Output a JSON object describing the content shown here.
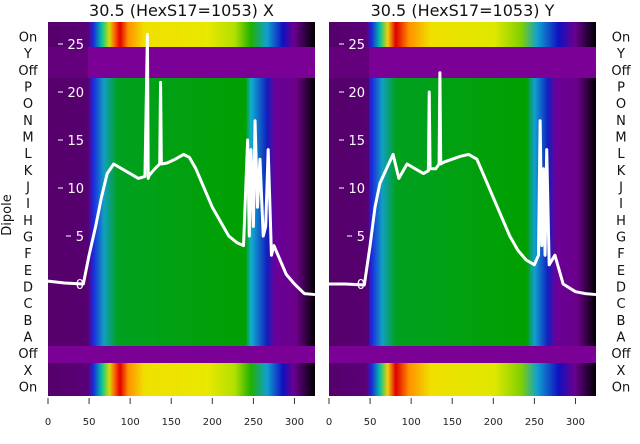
{
  "chart_data": [
    {
      "type": "heatmap",
      "title": "30.5 (HexS17=1053) X",
      "ylabel": "Dipole",
      "xlim": [
        0,
        325
      ],
      "xticks": [
        0,
        50,
        100,
        150,
        200,
        250,
        300
      ],
      "row_labels": [
        "On",
        "Y",
        "Off",
        "P",
        "O",
        "N",
        "M",
        "L",
        "K",
        "J",
        "I",
        "H",
        "G",
        "F",
        "E",
        "D",
        "C",
        "B",
        "A",
        "Off",
        "X",
        "On"
      ],
      "overlay_yticks": [
        0,
        5,
        10,
        15,
        20,
        25
      ],
      "overlay_line": {
        "x": [
          0,
          20,
          43,
          50,
          58,
          65,
          72,
          80,
          90,
          100,
          110,
          118,
          121,
          122,
          123,
          125,
          130,
          136,
          137,
          138,
          145,
          155,
          165,
          172,
          180,
          190,
          200,
          210,
          220,
          230,
          238,
          243,
          245,
          247,
          250,
          252,
          255,
          258,
          262,
          265,
          268,
          272,
          275,
          280,
          290,
          300,
          312,
          325
        ],
        "y": [
          0.3,
          0.1,
          0,
          3,
          6,
          9,
          11.5,
          12.5,
          12,
          11.5,
          11,
          11.2,
          26,
          11,
          11.3,
          11.5,
          12,
          12.5,
          21,
          12.5,
          12.6,
          13,
          13.5,
          13.2,
          12,
          10,
          8,
          6.5,
          5,
          4.3,
          4,
          15,
          5,
          14,
          6,
          17,
          8,
          13,
          5,
          6,
          14,
          3,
          4,
          3,
          1,
          0,
          -1,
          -1.1
        ]
      }
    },
    {
      "type": "heatmap",
      "title": "30.5 (HexS17=1053) Y",
      "xlim": [
        0,
        325
      ],
      "xticks": [
        0,
        50,
        100,
        150,
        200,
        250,
        300
      ],
      "row_labels": [
        "On",
        "Y",
        "Off",
        "P",
        "O",
        "N",
        "M",
        "L",
        "K",
        "J",
        "I",
        "H",
        "G",
        "F",
        "E",
        "D",
        "C",
        "B",
        "A",
        "Off",
        "X",
        "On"
      ],
      "overlay_yticks": [
        0,
        5,
        10,
        15,
        20,
        25
      ],
      "overlay_line": {
        "x": [
          0,
          20,
          43,
          50,
          56,
          62,
          70,
          78,
          85,
          95,
          105,
          115,
          121,
          122,
          123,
          130,
          134,
          135,
          136,
          140,
          150,
          160,
          170,
          180,
          190,
          200,
          210,
          220,
          230,
          240,
          250,
          255,
          257,
          259,
          261,
          263,
          265,
          268,
          275,
          285,
          300,
          312,
          325
        ],
        "y": [
          0,
          0,
          -0.1,
          4,
          8,
          10.5,
          12,
          13.5,
          11,
          12.5,
          12,
          11.5,
          11.8,
          20,
          12,
          12,
          12.5,
          22,
          12.5,
          12.7,
          13,
          13.3,
          13.5,
          13,
          11,
          9,
          7,
          5,
          3.5,
          2.5,
          2,
          3,
          17,
          4,
          12,
          3,
          14,
          2,
          3,
          0,
          -0.8,
          -1,
          -1.1
        ]
      }
    }
  ]
}
